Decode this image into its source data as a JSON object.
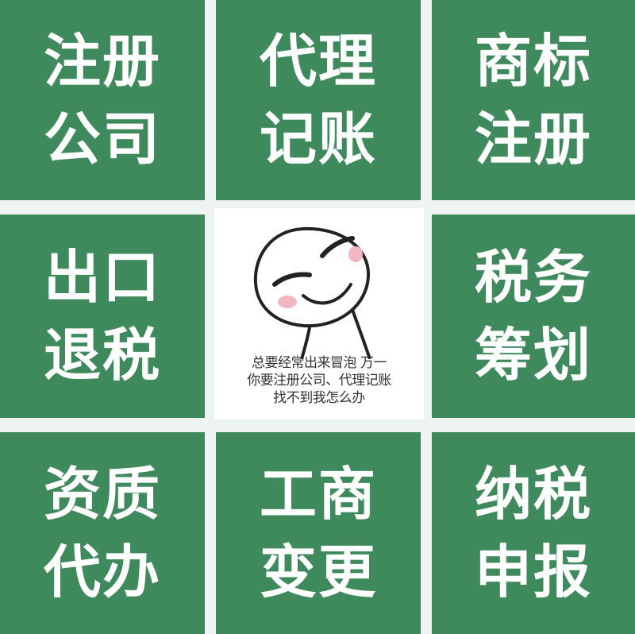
{
  "tiles": [
    {
      "line1": "注册",
      "line2": "公司"
    },
    {
      "line1": "代理",
      "line2": "记账"
    },
    {
      "line1": "商标",
      "line2": "注册"
    },
    {
      "line1": "出口",
      "line2": "退税"
    },
    {
      "line1": "税务",
      "line2": "筹划"
    },
    {
      "line1": "资质",
      "line2": "代办"
    },
    {
      "line1": "工商",
      "line2": "变更"
    },
    {
      "line1": "纳税",
      "line2": "申报"
    }
  ],
  "center": {
    "caption_line1": "总要经常出来冒泡  万一",
    "caption_line2": "你要注册公司、代理记账",
    "caption_line3": "找不到我怎么办"
  },
  "colors": {
    "tile_green": "#3f8a5d",
    "tile_text": "#ffffff",
    "gap_background": "#eef5f0"
  }
}
